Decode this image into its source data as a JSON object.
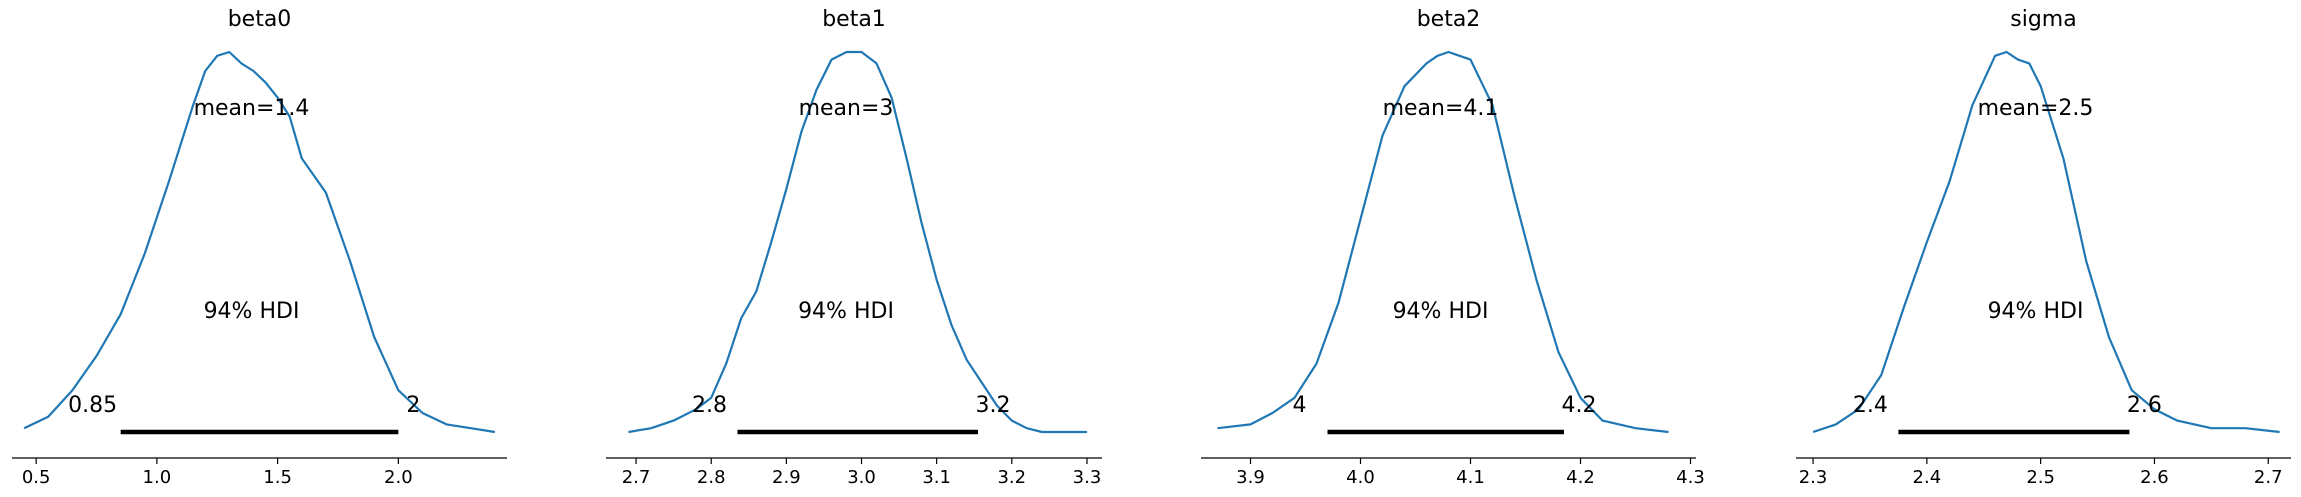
{
  "chart_data": [
    {
      "type": "line",
      "title": "beta0",
      "mean_label": "mean=1.4",
      "hdi_label": "94% HDI",
      "hdi": {
        "low": 0.85,
        "high": 2.0,
        "low_label": "0.85",
        "high_label": "2"
      },
      "xlim": [
        0.4,
        2.45
      ],
      "xticks": [
        0.5,
        1.0,
        1.5,
        2.0
      ],
      "xtick_labels": [
        "0.5",
        "1.0",
        "1.5",
        "2.0"
      ],
      "density": {
        "x": [
          0.45,
          0.55,
          0.65,
          0.75,
          0.85,
          0.95,
          1.05,
          1.15,
          1.2,
          1.25,
          1.3,
          1.35,
          1.4,
          1.45,
          1.5,
          1.55,
          1.6,
          1.7,
          1.8,
          1.9,
          2.0,
          2.1,
          2.2,
          2.3,
          2.4
        ],
        "y": [
          0.01,
          0.04,
          0.11,
          0.2,
          0.31,
          0.47,
          0.66,
          0.86,
          0.95,
          0.99,
          1.0,
          0.97,
          0.95,
          0.92,
          0.88,
          0.83,
          0.72,
          0.63,
          0.45,
          0.25,
          0.11,
          0.05,
          0.02,
          0.01,
          0.0
        ]
      }
    },
    {
      "type": "line",
      "title": "beta1",
      "mean_label": "mean=3",
      "hdi_label": "94% HDI",
      "hdi": {
        "low": 2.835,
        "high": 3.155,
        "low_label": "2.8",
        "high_label": "3.2"
      },
      "xlim": [
        2.66,
        3.32
      ],
      "xticks": [
        2.7,
        2.8,
        2.9,
        3.0,
        3.1,
        3.2,
        3.3
      ],
      "xtick_labels": [
        "2.7",
        "2.8",
        "2.9",
        "3.0",
        "3.1",
        "3.2",
        "3.3"
      ],
      "density": {
        "x": [
          2.69,
          2.72,
          2.75,
          2.78,
          2.8,
          2.82,
          2.84,
          2.86,
          2.88,
          2.9,
          2.92,
          2.94,
          2.96,
          2.98,
          3.0,
          3.02,
          3.04,
          3.06,
          3.08,
          3.1,
          3.12,
          3.14,
          3.16,
          3.18,
          3.2,
          3.22,
          3.24,
          3.27,
          3.3
        ],
        "y": [
          0.0,
          0.01,
          0.03,
          0.06,
          0.09,
          0.18,
          0.3,
          0.37,
          0.5,
          0.64,
          0.79,
          0.9,
          0.98,
          1.0,
          1.0,
          0.97,
          0.88,
          0.72,
          0.55,
          0.4,
          0.28,
          0.19,
          0.13,
          0.07,
          0.03,
          0.01,
          0.0,
          0.0,
          0.0
        ]
      }
    },
    {
      "type": "line",
      "title": "beta2",
      "mean_label": "mean=4.1",
      "hdi_label": "94% HDI",
      "hdi": {
        "low": 3.97,
        "high": 4.185,
        "low_label": "4",
        "high_label": "4.2"
      },
      "xlim": [
        3.855,
        4.305
      ],
      "xticks": [
        3.9,
        4.0,
        4.1,
        4.2,
        4.3
      ],
      "xtick_labels": [
        "3.9",
        "4.0",
        "4.1",
        "4.2",
        "4.3"
      ],
      "density": {
        "x": [
          3.87,
          3.9,
          3.92,
          3.94,
          3.96,
          3.98,
          4.0,
          4.02,
          4.04,
          4.06,
          4.07,
          4.08,
          4.09,
          4.1,
          4.12,
          4.14,
          4.16,
          4.18,
          4.2,
          4.22,
          4.25,
          4.28
        ],
        "y": [
          0.01,
          0.02,
          0.05,
          0.09,
          0.18,
          0.34,
          0.56,
          0.78,
          0.91,
          0.97,
          0.99,
          1.0,
          0.99,
          0.98,
          0.86,
          0.62,
          0.4,
          0.21,
          0.09,
          0.03,
          0.01,
          0.0
        ]
      }
    },
    {
      "type": "line",
      "title": "sigma",
      "mean_label": "mean=2.5",
      "hdi_label": "94% HDI",
      "hdi": {
        "low": 2.375,
        "high": 2.578,
        "low_label": "2.4",
        "high_label": "2.6"
      },
      "xlim": [
        2.285,
        2.72
      ],
      "xticks": [
        2.3,
        2.4,
        2.5,
        2.6,
        2.7
      ],
      "xtick_labels": [
        "2.3",
        "2.4",
        "2.5",
        "2.6",
        "2.7"
      ],
      "density": {
        "x": [
          2.3,
          2.32,
          2.34,
          2.36,
          2.38,
          2.4,
          2.42,
          2.44,
          2.46,
          2.47,
          2.48,
          2.49,
          2.5,
          2.52,
          2.54,
          2.56,
          2.58,
          2.6,
          2.62,
          2.65,
          2.68,
          2.71
        ],
        "y": [
          0.0,
          0.02,
          0.06,
          0.15,
          0.33,
          0.5,
          0.66,
          0.86,
          0.99,
          1.0,
          0.98,
          0.97,
          0.91,
          0.72,
          0.45,
          0.25,
          0.11,
          0.06,
          0.03,
          0.01,
          0.01,
          0.0
        ]
      }
    }
  ]
}
